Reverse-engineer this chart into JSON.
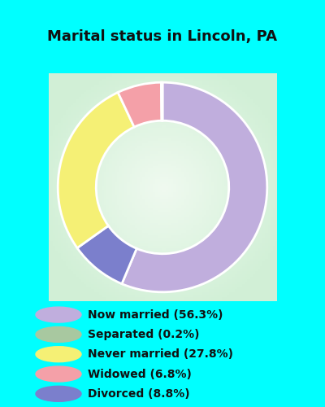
{
  "title": "Marital status in Lincoln, PA",
  "categories": [
    "Now married",
    "Divorced",
    "Never married",
    "Widowed",
    "Separated"
  ],
  "values": [
    56.3,
    8.8,
    27.8,
    6.8,
    0.2
  ],
  "colors": [
    "#c0aedd",
    "#7b7fcc",
    "#f5f075",
    "#f4a0a8",
    "#a8c8a0"
  ],
  "legend_labels": [
    "Now married (56.3%)",
    "Separated (0.2%)",
    "Never married (27.8%)",
    "Widowed (6.8%)",
    "Divorced (8.8%)"
  ],
  "legend_colors": [
    "#c0aedd",
    "#a8c8a0",
    "#f5f075",
    "#f4a0a8",
    "#7b7fcc"
  ],
  "bg_cyan": "#00ffff",
  "chart_bg_topleft": "#d0ecd8",
  "chart_bg_center": "#f0f8f4",
  "title_fontsize": 13,
  "legend_fontsize": 10,
  "donut_width": 0.42,
  "start_angle": 90
}
